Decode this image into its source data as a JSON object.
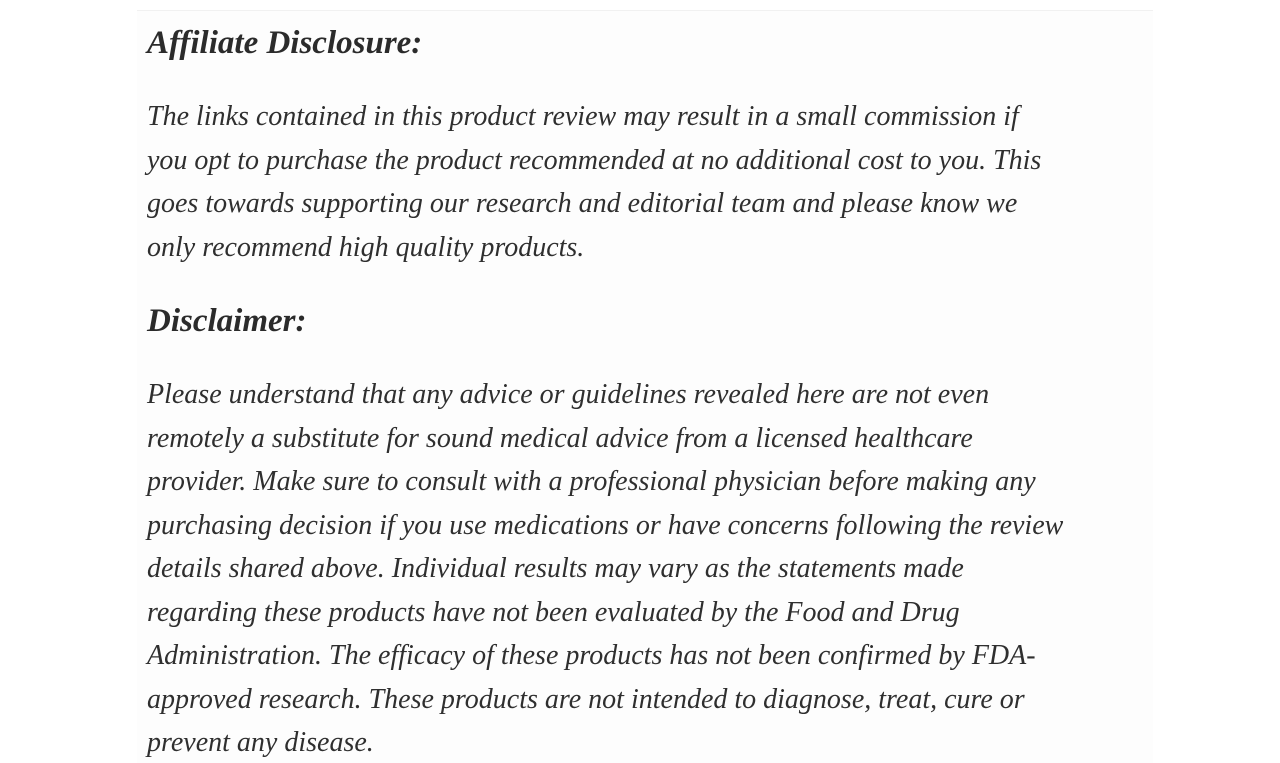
{
  "page": {
    "background_color": "#ffffff",
    "card_background_color": "#fdfdfd",
    "text_color": "#2f2f2f",
    "heading_color": "#2b2b2b"
  },
  "article": {
    "sections": [
      {
        "heading": "Affiliate Disclosure:",
        "body": "The links contained in this product review may result in a small commission if\nyou opt to purchase the product recommended at no additional cost to you. This\ngoes towards supporting our research and editorial team and please know we\nonly recommend high quality products."
      },
      {
        "heading": "Disclaimer:",
        "body": "Please understand that any advice or guidelines revealed here are not even\nremotely a substitute for sound medical advice from a licensed healthcare\nprovider. Make sure to consult with a professional physician before making any\npurchasing decision if you use medications or have concerns following the review\ndetails shared above. Individual results may vary as the statements made\nregarding these products have not been evaluated by the Food and Drug\nAdministration. The efficacy of these products has not been confirmed by FDA-\napproved research. These products are not intended to diagnose, treat, cure or\nprevent any disease."
      }
    ]
  }
}
